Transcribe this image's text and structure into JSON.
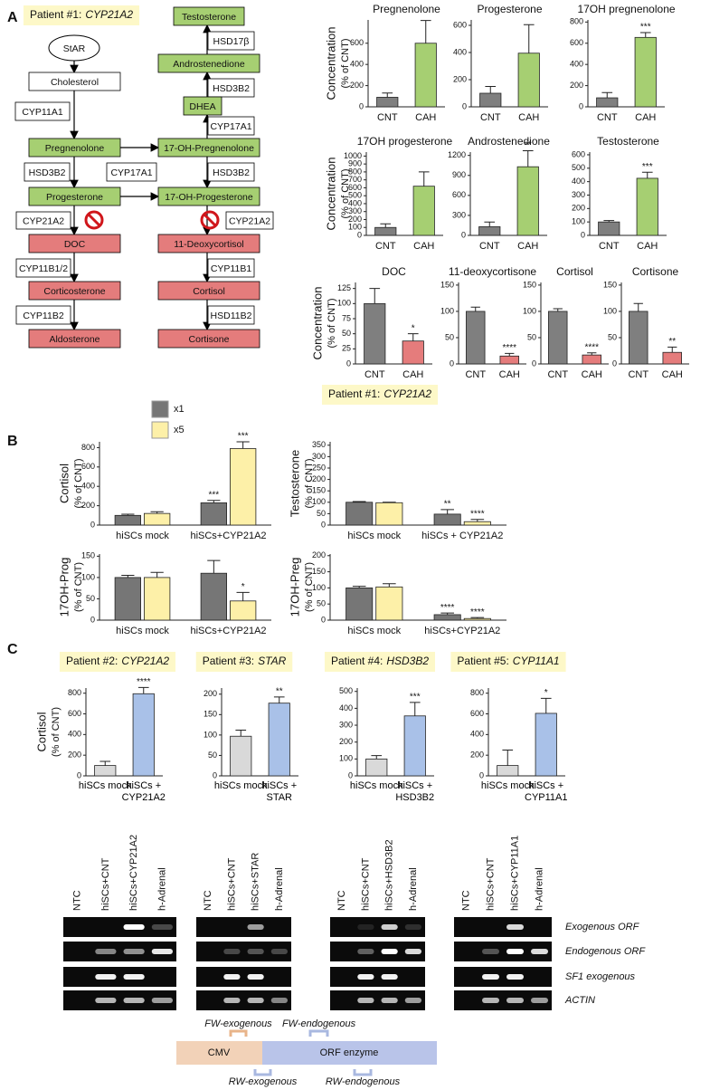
{
  "panel_labels": [
    "A",
    "B",
    "C"
  ],
  "pathway": {
    "patient": {
      "prefix": "Patient #1:",
      "gene": "CYP21A2"
    },
    "nodes": [
      "StAR",
      "Cholesterol",
      "CYP11A1",
      "Pregnenolone",
      "HSD3B2",
      "CYP17A1",
      "Progesterone",
      "CYP21A2",
      "DOC",
      "CYP11B1/2",
      "Corticosterone",
      "CYP11B2",
      "Aldosterone",
      "Testosterone",
      "HSD17β",
      "Androstenedione",
      "HSD3B2",
      "DHEA",
      "CYP17A1",
      "17-OH-Pregnenolone",
      "HSD3B2",
      "17-OH-Progesterone",
      "CYP21A2",
      "11-Deoxycortisol",
      "CYP11B1",
      "Cortisol",
      "HSD11B2",
      "Cortisone"
    ]
  },
  "panel_b_title": {
    "prefix": "Patient #1:",
    "gene": "CYP21A2"
  },
  "panel_c_titles": [
    {
      "prefix": "Patient #2:",
      "gene": "CYP21A2"
    },
    {
      "prefix": "Patient #3:",
      "gene": "STAR"
    },
    {
      "prefix": "Patient #4:",
      "gene": "HSD3B2"
    },
    {
      "prefix": "Patient #5:",
      "gene": "CYP11A1"
    }
  ],
  "chart_data": [
    {
      "type": "bar",
      "title": "Pregnenolone",
      "ylabel": "Concentration",
      "ylabel_sub": "(% of CNT)",
      "categories": [
        "CNT",
        "CAH"
      ],
      "values": [
        90,
        600
      ],
      "errors": [
        40,
        215
      ],
      "significance": [
        null,
        null
      ],
      "colors": [
        "#7f7f7f",
        "#a6cf72"
      ],
      "ylim": [
        0,
        820
      ],
      "yticks": [
        0,
        200,
        400,
        600
      ]
    },
    {
      "type": "bar",
      "title": "Progesterone",
      "categories": [
        "CNT",
        "CAH"
      ],
      "values": [
        100,
        395
      ],
      "errors": [
        50,
        210
      ],
      "significance": [
        null,
        null
      ],
      "colors": [
        "#7f7f7f",
        "#a6cf72"
      ],
      "ylim": [
        0,
        640
      ],
      "yticks": [
        0,
        200,
        400,
        600
      ]
    },
    {
      "type": "bar",
      "title": "17OH pregnenolone",
      "categories": [
        "CNT",
        "CAH"
      ],
      "values": [
        85,
        655
      ],
      "errors": [
        50,
        45
      ],
      "significance": [
        null,
        "***"
      ],
      "colors": [
        "#7f7f7f",
        "#a6cf72"
      ],
      "ylim": [
        0,
        820
      ],
      "yticks": [
        0,
        200,
        400,
        600,
        800
      ]
    },
    {
      "type": "bar",
      "title": "17OH progesterone",
      "ylabel": "Concentration",
      "ylabel_sub": "(% of CNT)",
      "categories": [
        "CNT",
        "CAH"
      ],
      "values": [
        100,
        620
      ],
      "errors": [
        45,
        180
      ],
      "significance": [
        null,
        null
      ],
      "colors": [
        "#7f7f7f",
        "#a6cf72"
      ],
      "ylim": [
        0,
        1050
      ],
      "yticks": [
        0,
        100,
        200,
        300,
        400,
        500,
        600,
        700,
        800,
        900,
        1000
      ]
    },
    {
      "type": "bar",
      "title": "Androstenedione",
      "categories": [
        "CNT",
        "CAH"
      ],
      "values": [
        130,
        1030
      ],
      "errors": [
        70,
        240
      ],
      "significance": [
        null,
        "**"
      ],
      "colors": [
        "#7f7f7f",
        "#a6cf72"
      ],
      "ylim": [
        0,
        1250
      ],
      "yticks": [
        0,
        300,
        600,
        900,
        1200
      ]
    },
    {
      "type": "bar",
      "title": "Testosterone",
      "categories": [
        "CNT",
        "CAH"
      ],
      "values": [
        100,
        425
      ],
      "errors": [
        10,
        45
      ],
      "significance": [
        null,
        "***"
      ],
      "colors": [
        "#7f7f7f",
        "#a6cf72"
      ],
      "ylim": [
        0,
        620
      ],
      "yticks": [
        0,
        100,
        200,
        300,
        400,
        500,
        600
      ]
    },
    {
      "type": "bar",
      "title": "DOC",
      "ylabel": "Concentration",
      "ylabel_sub": "(% of CNT)",
      "categories": [
        "CNT",
        "CAH"
      ],
      "values": [
        100,
        38
      ],
      "errors": [
        25,
        12
      ],
      "significance": [
        null,
        "*"
      ],
      "colors": [
        "#7f7f7f",
        "#e57c7c"
      ],
      "ylim": [
        0,
        135
      ],
      "yticks": [
        0,
        25,
        50,
        75,
        100,
        125
      ]
    },
    {
      "type": "bar",
      "title": "11-deoxycortisone",
      "categories": [
        "CNT",
        "CAH"
      ],
      "values": [
        100,
        15
      ],
      "errors": [
        8,
        5
      ],
      "significance": [
        null,
        "****"
      ],
      "colors": [
        "#7f7f7f",
        "#e57c7c"
      ],
      "ylim": [
        0,
        155
      ],
      "yticks": [
        0,
        50,
        100,
        150
      ]
    },
    {
      "type": "bar",
      "title": "Cortisol",
      "categories": [
        "CNT",
        "CAH"
      ],
      "values": [
        100,
        17
      ],
      "errors": [
        5,
        4
      ],
      "significance": [
        null,
        "****"
      ],
      "colors": [
        "#7f7f7f",
        "#e57c7c"
      ],
      "ylim": [
        0,
        155
      ],
      "yticks": [
        0,
        50,
        100,
        150
      ]
    },
    {
      "type": "bar",
      "title": "Cortisone",
      "categories": [
        "CNT",
        "CAH"
      ],
      "values": [
        100,
        22
      ],
      "errors": [
        15,
        10
      ],
      "significance": [
        null,
        "**"
      ],
      "colors": [
        "#7f7f7f",
        "#e57c7c"
      ],
      "ylim": [
        0,
        155
      ],
      "yticks": [
        0,
        50,
        100,
        150
      ]
    },
    {
      "type": "grouped_bar",
      "ylabel": "Cortisol",
      "ylabel_sub": "(% of CNT)",
      "categories": [
        "hiSCs mock",
        "hiSCs+CYP21A2"
      ],
      "series": [
        {
          "name": "x1",
          "color": "#767676",
          "values": [
            100,
            230
          ],
          "errors": [
            12,
            25
          ],
          "significance": [
            null,
            "***"
          ]
        },
        {
          "name": "x5",
          "color": "#fdf0a8",
          "values": [
            120,
            790
          ],
          "errors": [
            18,
            70
          ],
          "significance": [
            null,
            "***"
          ]
        }
      ],
      "ylim": [
        0,
        860
      ],
      "yticks": [
        0,
        200,
        400,
        600,
        800
      ]
    },
    {
      "type": "grouped_bar",
      "ylabel": "Testosterone",
      "ylabel_sub": "(% of CNT)",
      "categories": [
        "hiSCs mock",
        "hiSCs + CYP21A2"
      ],
      "series": [
        {
          "color": "#767676",
          "values": [
            100,
            48
          ],
          "errors": [
            3,
            20
          ],
          "significance": [
            null,
            "**"
          ]
        },
        {
          "color": "#fdf0a8",
          "values": [
            98,
            15
          ],
          "errors": [
            2,
            10
          ],
          "significance": [
            null,
            "****"
          ]
        }
      ],
      "ylim": [
        0,
        365
      ],
      "yticks": [
        0,
        50,
        100,
        150,
        200,
        250,
        300,
        350
      ]
    },
    {
      "type": "grouped_bar",
      "ylabel": "17OH-Prog",
      "ylabel_sub": "(% of CNT)",
      "categories": [
        "hiSCs mock",
        "hiSCs+CYP21A2"
      ],
      "series": [
        {
          "color": "#767676",
          "values": [
            100,
            110
          ],
          "errors": [
            5,
            30
          ],
          "significance": [
            null,
            null
          ]
        },
        {
          "color": "#fdf0a8",
          "values": [
            100,
            45
          ],
          "errors": [
            12,
            20
          ],
          "significance": [
            null,
            "*"
          ]
        }
      ],
      "ylim": [
        0,
        155
      ],
      "yticks": [
        0,
        50,
        100,
        150
      ]
    },
    {
      "type": "grouped_bar",
      "ylabel": "17OH-Preg",
      "ylabel_sub": "(% of CNT)",
      "categories": [
        "hiSCs mock",
        "hiSCs+CYP21A2"
      ],
      "series": [
        {
          "color": "#767676",
          "values": [
            100,
            17
          ],
          "errors": [
            5,
            5
          ],
          "significance": [
            null,
            "****"
          ]
        },
        {
          "color": "#fdf0a8",
          "values": [
            103,
            5
          ],
          "errors": [
            10,
            3
          ],
          "significance": [
            null,
            "****"
          ]
        }
      ],
      "ylim": [
        0,
        205
      ],
      "yticks": [
        0,
        50,
        100,
        150,
        200
      ]
    },
    {
      "type": "bar",
      "ylabel": "Cortisol",
      "ylabel_sub": "(% of CNT)",
      "categories": [
        "hiSCs mock",
        "hiSCs + CYP21A2"
      ],
      "values": [
        100,
        795
      ],
      "errors": [
        40,
        60
      ],
      "significance": [
        null,
        "****"
      ],
      "colors": [
        "#d9d9d9",
        "#a9c1e8"
      ],
      "ylim": [
        0,
        850
      ],
      "yticks": [
        0,
        200,
        400,
        600,
        800
      ]
    },
    {
      "type": "bar",
      "categories": [
        "hiSCs mock",
        "hiSCs + STAR"
      ],
      "values": [
        97,
        178
      ],
      "errors": [
        15,
        15
      ],
      "significance": [
        null,
        "**"
      ],
      "colors": [
        "#d9d9d9",
        "#a9c1e8"
      ],
      "ylim": [
        0,
        215
      ],
      "yticks": [
        0,
        50,
        100,
        150,
        200
      ]
    },
    {
      "type": "bar",
      "categories": [
        "hiSCs mock",
        "hiSCs + HSD3B2"
      ],
      "values": [
        100,
        355
      ],
      "errors": [
        20,
        80
      ],
      "significance": [
        null,
        "***"
      ],
      "colors": [
        "#d9d9d9",
        "#a9c1e8"
      ],
      "ylim": [
        0,
        520
      ],
      "yticks": [
        0,
        100,
        200,
        300,
        400,
        500
      ]
    },
    {
      "type": "bar",
      "categories": [
        "hiSCs mock",
        "hiSCs + CYP11A1"
      ],
      "values": [
        100,
        605
      ],
      "errors": [
        150,
        145
      ],
      "significance": [
        null,
        "*"
      ],
      "colors": [
        "#d9d9d9",
        "#a9c1e8"
      ],
      "ylim": [
        0,
        850
      ],
      "yticks": [
        0,
        200,
        400,
        600,
        800
      ]
    }
  ],
  "gels": {
    "lanes": [
      [
        "NTC",
        "hiSCs+CNT",
        "hiSCs+CYP21A2",
        "h-Adrenal"
      ],
      [
        "NTC",
        "hiSCs+CNT",
        "hiSCs+STAR",
        "h-Adrenal"
      ],
      [
        "NTC",
        "hiSCs+CNT",
        "hiSCs+HSD3B2",
        "h-Adrenal"
      ],
      [
        "NTC",
        "hiSCs+CNT",
        "hiSCs+CYP11A1",
        "h-Adrenal"
      ]
    ],
    "rows": [
      "Exogenous ORF",
      "Endogenous ORF",
      "SF1 exogenous",
      "ACTIN"
    ]
  },
  "construct": {
    "segments": [
      "CMV",
      "ORF enzyme"
    ],
    "primers": [
      "FW-exogenous",
      "FW-endogenous",
      "RW-exogenous",
      "RW-endogenous"
    ]
  }
}
